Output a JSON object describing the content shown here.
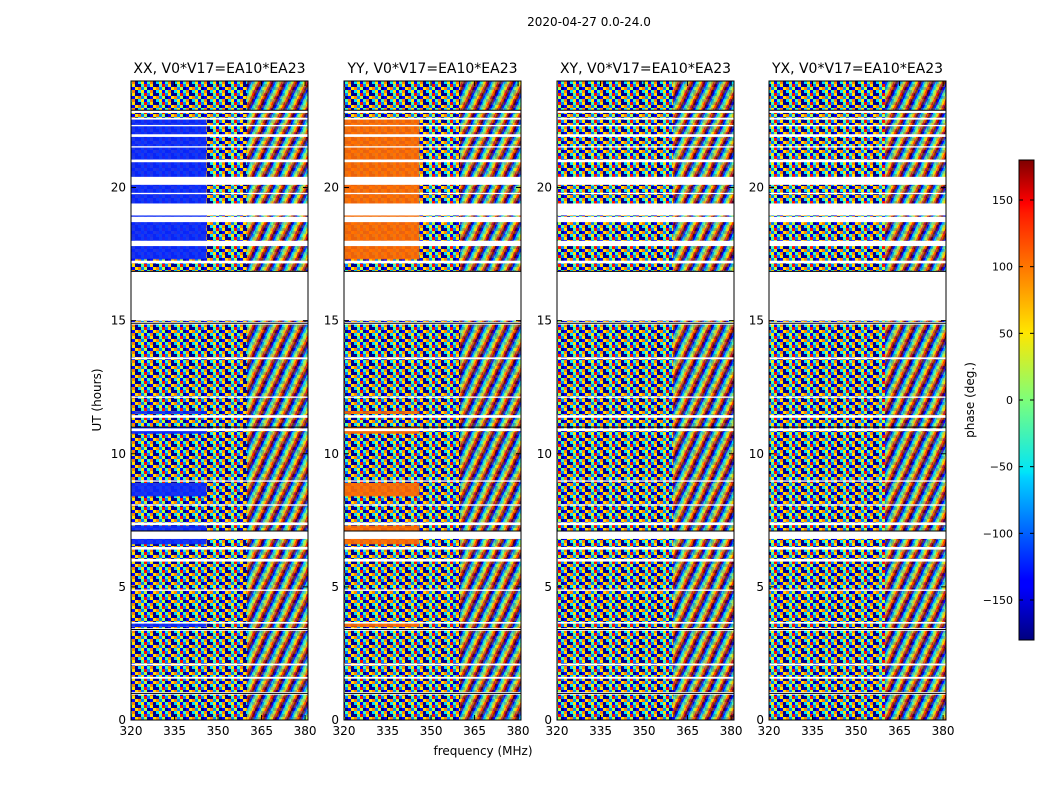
{
  "chart_data": {
    "type": "heatmap",
    "suptitle": "2020-04-27 0.0-24.0",
    "xlabel": "frequency (MHz)",
    "ylabel": "UT (hours)",
    "xlim": [
      320,
      381
    ],
    "ylim": [
      0,
      24
    ],
    "xticks": [
      320,
      335,
      350,
      365,
      380
    ],
    "yticks": [
      0,
      5,
      10,
      15,
      20
    ],
    "panels": [
      {
        "title": "XX, V0*V17=EA10*EA23",
        "pol": "XX",
        "solid_block_phase": -150
      },
      {
        "title": "YY, V0*V17=EA10*EA23",
        "pol": "YY",
        "solid_block_phase": 125
      },
      {
        "title": "XY, V0*V17=EA10*EA23",
        "pol": "XY",
        "solid_block_phase": null
      },
      {
        "title": "YX, V0*V17=EA10*EA23",
        "pol": "YX",
        "solid_block_phase": null
      }
    ],
    "blank_time_ranges_hours": [
      [
        0.95,
        1.05
      ],
      [
        1.55,
        1.62
      ],
      [
        2.05,
        2.12
      ],
      [
        3.35,
        3.45
      ],
      [
        3.62,
        3.68
      ],
      [
        4.85,
        4.9
      ],
      [
        5.95,
        6.05
      ],
      [
        6.4,
        6.5
      ],
      [
        6.8,
        7.1
      ],
      [
        7.32,
        7.42
      ],
      [
        8.05,
        8.1
      ],
      [
        8.95,
        9.0
      ],
      [
        10.85,
        10.95
      ],
      [
        11.35,
        11.45
      ],
      [
        12.1,
        12.15
      ],
      [
        13.55,
        13.62
      ],
      [
        14.85,
        14.95
      ],
      [
        15.0,
        16.85
      ],
      [
        17.15,
        17.25
      ],
      [
        17.8,
        18.0
      ],
      [
        18.7,
        18.9
      ],
      [
        18.95,
        19.4
      ],
      [
        19.75,
        19.8
      ],
      [
        20.1,
        20.4
      ],
      [
        20.95,
        21.05
      ],
      [
        21.5,
        21.55
      ],
      [
        21.9,
        22.0
      ],
      [
        22.3,
        22.35
      ],
      [
        22.55,
        22.62
      ],
      [
        22.8,
        22.9
      ]
    ],
    "colorbar": {
      "label": "phase (deg.)",
      "range": [
        -180,
        180
      ],
      "ticks": [
        -150,
        -100,
        -50,
        0,
        50,
        100,
        150
      ],
      "tick_labels": [
        "−150",
        "−100",
        "−50",
        "0",
        "50",
        "100",
        "150"
      ],
      "colormap": "jet"
    }
  }
}
